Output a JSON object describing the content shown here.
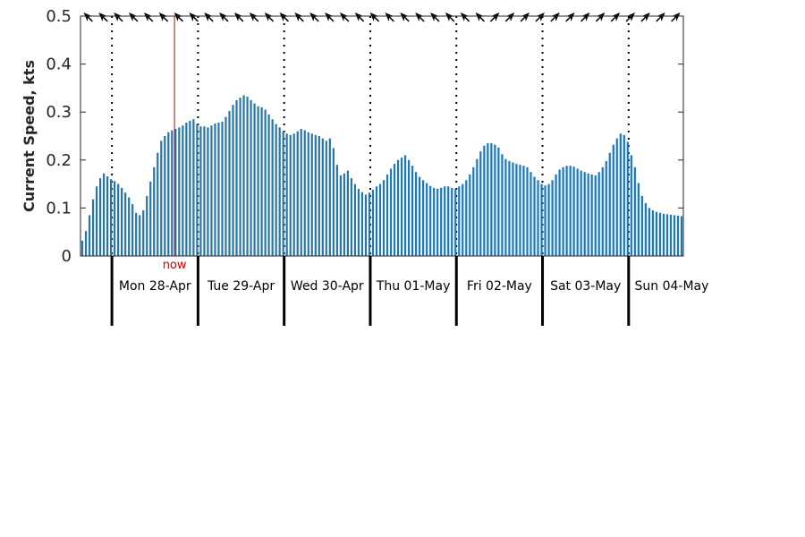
{
  "chart_data": {
    "type": "bar",
    "title": "",
    "ylabel": "Current Speed, kts",
    "xlabel": "",
    "ylim": [
      0,
      0.5
    ],
    "yticks": [
      0,
      0.1,
      0.2,
      0.3,
      0.4,
      0.5
    ],
    "ytick_labels": [
      "0",
      "0.1",
      "0.2",
      "0.3",
      "0.4",
      "0.5"
    ],
    "grid": false,
    "x_range_hours": [
      0,
      168
    ],
    "day_boundaries_hours": [
      8.75,
      32.75,
      56.75,
      80.75,
      104.75,
      128.75,
      152.75
    ],
    "days": [
      "Mon 28-Apr",
      "Tue 29-Apr",
      "Wed 30-Apr",
      "Thu 01-May",
      "Fri 02-May",
      "Sat 03-May",
      "Sun 04-May"
    ],
    "now_marker": {
      "label": "now",
      "hour": 26.2,
      "color": "#cc0000"
    },
    "bar_color": "#1f77b4",
    "series": [
      {
        "hours": [
          0,
          1,
          2,
          3,
          4,
          5,
          6,
          7,
          8,
          9,
          10,
          11,
          12,
          13,
          14,
          15,
          16,
          17,
          18,
          19,
          20,
          21,
          22,
          23,
          24,
          25,
          26,
          27,
          28,
          29,
          30,
          31,
          32,
          33,
          34,
          35,
          36,
          37,
          38,
          39,
          40,
          41,
          42,
          43,
          44,
          45,
          46,
          47,
          48,
          49,
          50,
          51,
          52,
          53,
          54,
          55,
          56,
          57,
          58,
          59,
          60,
          61,
          62,
          63,
          64,
          65,
          66,
          67,
          68,
          69,
          70,
          71,
          72,
          73,
          74,
          75,
          76,
          77,
          78,
          79,
          80,
          81,
          82,
          83,
          84,
          85,
          86,
          87,
          88,
          89,
          90,
          91,
          92,
          93,
          94,
          95,
          96,
          97,
          98,
          99,
          100,
          101,
          102,
          103,
          104,
          105,
          106,
          107,
          108,
          109,
          110,
          111,
          112,
          113,
          114,
          115,
          116,
          117,
          118,
          119,
          120,
          121,
          122,
          123,
          124,
          125,
          126,
          127,
          128,
          129,
          130,
          131,
          132,
          133,
          134,
          135,
          136,
          137,
          138,
          139,
          140,
          141,
          142,
          143,
          144,
          145,
          146,
          147,
          148,
          149,
          150,
          151,
          152,
          153,
          154,
          155,
          156,
          157,
          158,
          159,
          160,
          161,
          162,
          163,
          164,
          165,
          166,
          167
        ],
        "values": [
          0.032,
          0.052,
          0.085,
          0.118,
          0.145,
          0.162,
          0.172,
          0.166,
          0.16,
          0.156,
          0.15,
          0.142,
          0.132,
          0.122,
          0.108,
          0.09,
          0.085,
          0.095,
          0.125,
          0.155,
          0.185,
          0.215,
          0.24,
          0.25,
          0.258,
          0.262,
          0.265,
          0.268,
          0.272,
          0.278,
          0.282,
          0.285,
          0.275,
          0.27,
          0.27,
          0.268,
          0.272,
          0.276,
          0.278,
          0.28,
          0.29,
          0.302,
          0.315,
          0.325,
          0.33,
          0.335,
          0.332,
          0.325,
          0.318,
          0.312,
          0.31,
          0.305,
          0.295,
          0.285,
          0.275,
          0.268,
          0.26,
          0.255,
          0.252,
          0.255,
          0.26,
          0.265,
          0.262,
          0.258,
          0.255,
          0.252,
          0.25,
          0.245,
          0.24,
          0.245,
          0.225,
          0.19,
          0.168,
          0.172,
          0.178,
          0.162,
          0.15,
          0.14,
          0.133,
          0.128,
          0.132,
          0.138,
          0.145,
          0.15,
          0.158,
          0.17,
          0.182,
          0.192,
          0.2,
          0.205,
          0.21,
          0.2,
          0.188,
          0.175,
          0.165,
          0.158,
          0.152,
          0.146,
          0.142,
          0.14,
          0.142,
          0.145,
          0.145,
          0.142,
          0.14,
          0.145,
          0.15,
          0.158,
          0.17,
          0.185,
          0.202,
          0.218,
          0.23,
          0.235,
          0.235,
          0.232,
          0.226,
          0.212,
          0.202,
          0.198,
          0.195,
          0.192,
          0.19,
          0.188,
          0.185,
          0.175,
          0.165,
          0.158,
          0.15,
          0.147,
          0.15,
          0.158,
          0.17,
          0.18,
          0.185,
          0.188,
          0.188,
          0.186,
          0.182,
          0.178,
          0.175,
          0.172,
          0.17,
          0.168,
          0.175,
          0.185,
          0.198,
          0.215,
          0.232,
          0.245,
          0.255,
          0.252,
          0.238,
          0.21,
          0.185,
          0.152,
          0.125,
          0.11,
          0.1,
          0.095,
          0.092,
          0.09,
          0.088,
          0.087,
          0.086,
          0.085,
          0.084,
          0.083
        ]
      }
    ],
    "direction_arrows_deg": [
      315,
      315,
      315,
      315,
      315,
      315,
      315,
      315,
      315,
      315,
      315,
      315,
      315,
      315,
      315,
      315,
      315,
      315,
      315,
      315,
      315,
      315,
      315,
      315,
      315,
      315,
      315,
      45,
      45,
      45,
      45,
      45,
      45,
      45,
      45,
      45,
      45,
      45,
      45,
      45
    ]
  }
}
